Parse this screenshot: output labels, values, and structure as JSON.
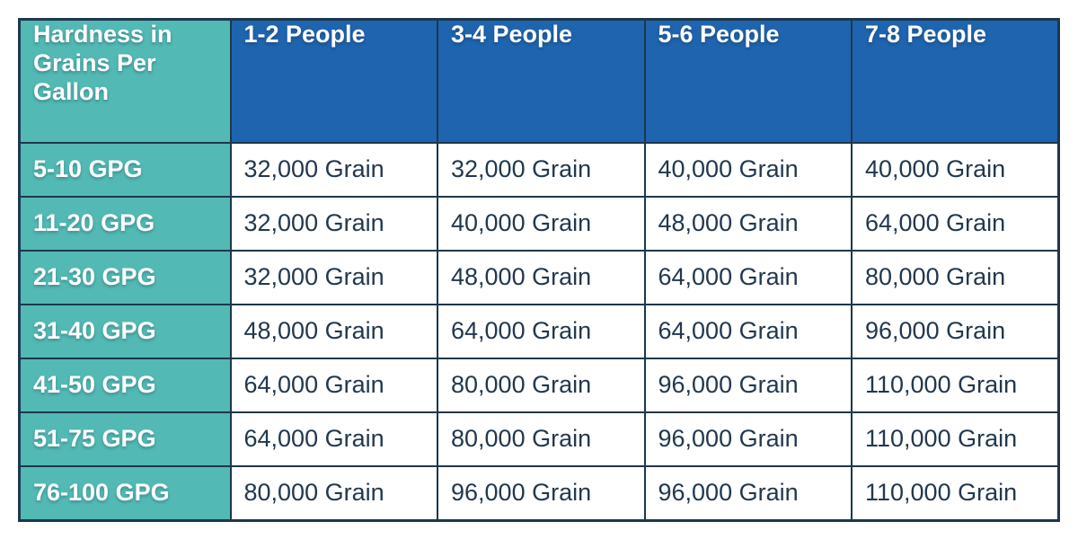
{
  "chart_data": {
    "type": "table",
    "description": "Water softener capacity sizing table by water hardness and household size",
    "header": [
      "Hardness in Grains Per Gallon",
      "1-2 People",
      "3-4 People",
      "5-6 People",
      "7-8 People"
    ],
    "rows": [
      [
        "5-10 GPG",
        "32,000 Grain",
        "32,000 Grain",
        "40,000 Grain",
        "40,000 Grain"
      ],
      [
        "11-20 GPG",
        "32,000 Grain",
        "40,000 Grain",
        "48,000 Grain",
        "64,000 Grain"
      ],
      [
        "21-30 GPG",
        "32,000 Grain",
        "48,000 Grain",
        "64,000 Grain",
        "80,000 Grain"
      ],
      [
        "31-40 GPG",
        "48,000 Grain",
        "64,000 Grain",
        "64,000 Grain",
        "96,000 Grain"
      ],
      [
        "41-50 GPG",
        "64,000 Grain",
        "80,000 Grain",
        "96,000 Grain",
        "110,000 Grain"
      ],
      [
        "51-75 GPG",
        "64,000 Grain",
        "80,000 Grain",
        "96,000 Grain",
        "110,000 Grain"
      ],
      [
        "76-100 GPG",
        "80,000 Grain",
        "96,000 Grain",
        "96,000 Grain",
        "110,000 Grain"
      ]
    ],
    "values_grains": [
      [
        32000,
        32000,
        40000,
        40000
      ],
      [
        32000,
        40000,
        48000,
        64000
      ],
      [
        32000,
        48000,
        64000,
        80000
      ],
      [
        48000,
        64000,
        64000,
        96000
      ],
      [
        64000,
        80000,
        96000,
        110000
      ],
      [
        64000,
        80000,
        96000,
        110000
      ],
      [
        80000,
        96000,
        96000,
        110000
      ]
    ]
  },
  "colors": {
    "teal": "#53b9b4",
    "blue": "#1f64ae",
    "border": "#1d374d",
    "cell_text": "#22384e",
    "header_text": "#ffffff",
    "background": "#ffffff"
  }
}
